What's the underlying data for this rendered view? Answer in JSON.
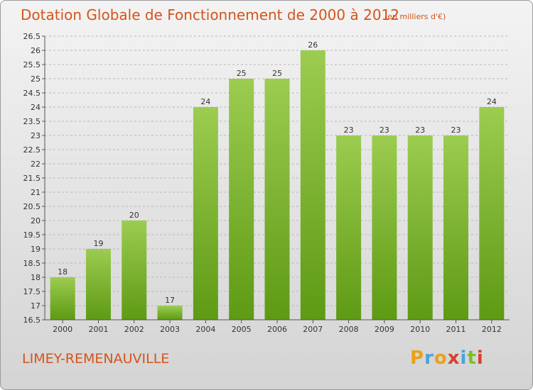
{
  "title": "Dotation Globale de Fonctionnement de 2000 à 2012",
  "subtitle": "(en milliers d'€)",
  "commune": "LIMEY-REMENAUVILLE",
  "logo": {
    "letters": [
      "P",
      "r",
      "o",
      "x",
      "i",
      "t",
      "i"
    ],
    "colors": [
      "#e8a21a",
      "#4aa3d8",
      "#e8a21a",
      "#d8402a",
      "#4aa3d8",
      "#7cbf2a",
      "#d8402a"
    ]
  },
  "colors": {
    "title": "#d4541a",
    "bar_light": "#9ccc50",
    "bar_dark": "#5e9a14",
    "grid": "#b8b8b8",
    "axis": "#555555"
  },
  "chart_data": {
    "type": "bar",
    "categories": [
      "2000",
      "2001",
      "2002",
      "2003",
      "2004",
      "2005",
      "2006",
      "2007",
      "2008",
      "2009",
      "2010",
      "2011",
      "2012"
    ],
    "values": [
      18,
      19,
      20,
      17,
      24,
      25,
      25,
      26,
      23,
      23,
      23,
      23,
      24
    ],
    "data_labels": [
      "18",
      "19",
      "20",
      "17",
      "24",
      "25",
      "25",
      "26",
      "23",
      "23",
      "23",
      "23",
      "24"
    ],
    "ylim": [
      16.5,
      26.5
    ],
    "yticks": [
      "16.5",
      "17",
      "17.5",
      "18",
      "18.5",
      "19",
      "19.5",
      "20",
      "20.5",
      "21",
      "21.5",
      "22",
      "22.5",
      "23",
      "23.5",
      "24",
      "24.5",
      "25",
      "25.5",
      "26",
      "26.5"
    ],
    "grid": true
  }
}
